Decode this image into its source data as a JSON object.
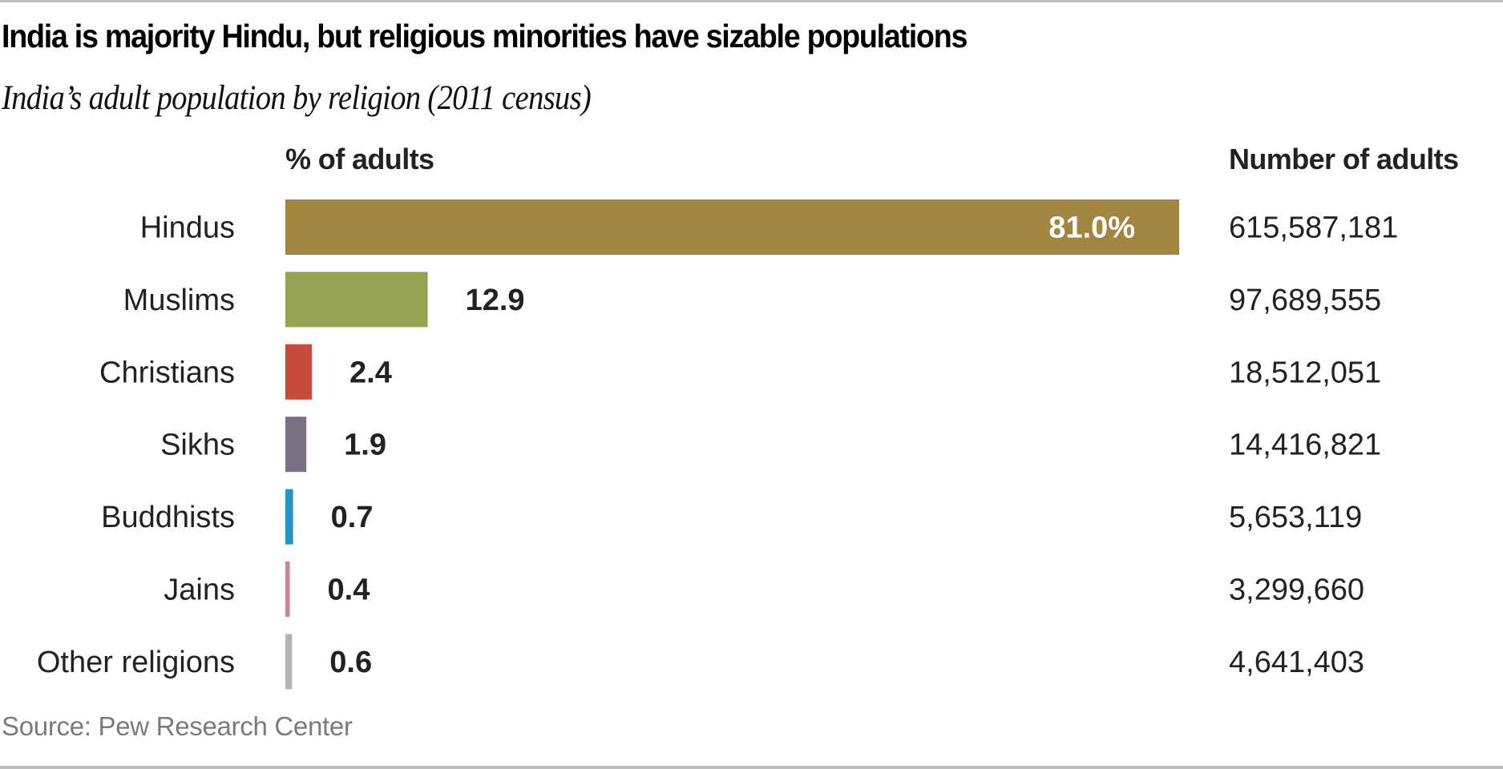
{
  "header": {
    "title": "India is majority Hindu, but religious minorities have sizable populations",
    "subtitle": "India’s adult population by religion (2011 census)"
  },
  "columns": {
    "percent_header": "% of adults",
    "number_header": "Number of adults"
  },
  "footer": {
    "source": "Source: Pew Research Center"
  },
  "chart_data": {
    "type": "bar",
    "orientation": "horizontal",
    "title": "India is majority Hindu, but religious minorities have sizable populations",
    "subtitle": "India’s adult population by religion (2011 census)",
    "xlabel": "% of adults",
    "ylabel": "",
    "xlim": [
      0,
      81.0
    ],
    "grid": false,
    "legend": "none",
    "categories": [
      "Hindus",
      "Muslims",
      "Christians",
      "Sikhs",
      "Buddhists",
      "Jains",
      "Other religions"
    ],
    "values": [
      81.0,
      12.9,
      2.4,
      1.9,
      0.7,
      0.4,
      0.6
    ],
    "value_labels": [
      "81.0%",
      "12.9",
      "2.4",
      "1.9",
      "0.7",
      "0.4",
      "0.6"
    ],
    "colors": [
      "#a28540",
      "#98a253",
      "#c44b3d",
      "#7b7083",
      "#2196c6",
      "#c98792",
      "#b3b3b3"
    ],
    "number_of_adults": [
      "615,587,181",
      "97,689,555",
      "18,512,051",
      "14,416,821",
      "5,653,119",
      "3,299,660",
      "4,641,403"
    ]
  }
}
